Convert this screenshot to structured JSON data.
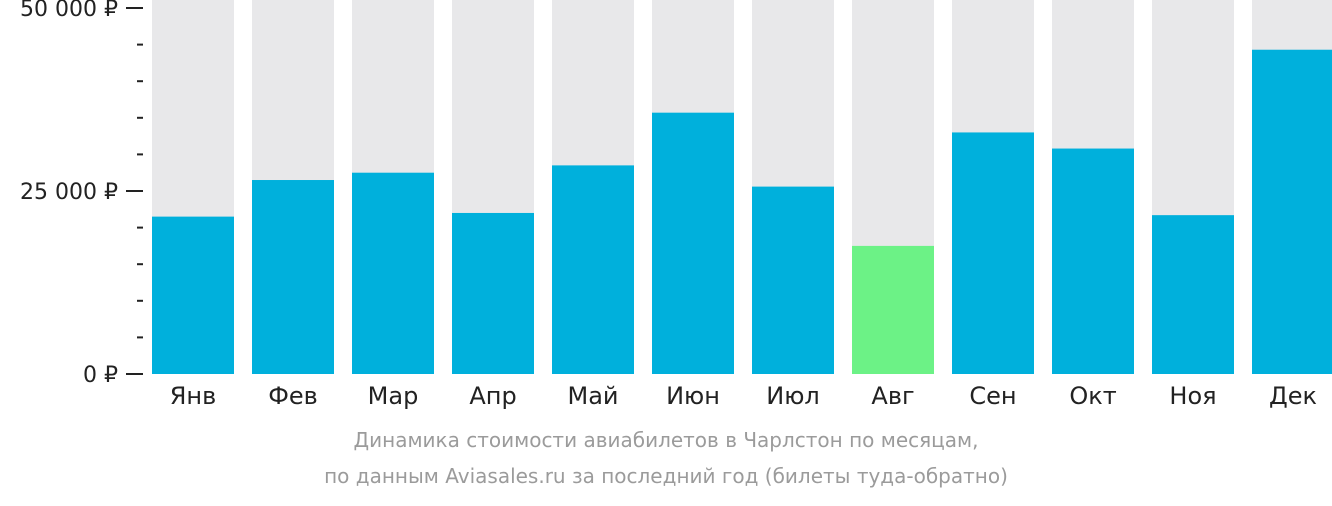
{
  "chart_data": {
    "type": "bar",
    "categories": [
      "Янв",
      "Фев",
      "Мар",
      "Апр",
      "Май",
      "Июн",
      "Июл",
      "Авг",
      "Сен",
      "Окт",
      "Ноя",
      "Дек"
    ],
    "values": [
      21500,
      26500,
      27500,
      22000,
      28500,
      35700,
      25600,
      17500,
      33000,
      30800,
      21700,
      44300
    ],
    "ylim": [
      0,
      50000
    ],
    "y_ticks": [
      {
        "value": 0,
        "label": "0 ₽"
      },
      {
        "value": 25000,
        "label": "25 000 ₽"
      },
      {
        "value": 50000,
        "label": "50 000 ₽"
      }
    ],
    "minor_tick_step": 5000,
    "title": "",
    "xlabel": "",
    "ylabel": "",
    "grid": false,
    "legend": "none",
    "highlight_index": 7,
    "colors": {
      "bar": "#00b0dc",
      "bar_highlight": "#6cf286",
      "background_column": "#e8e8ea",
      "axis_text": "#222222",
      "axis_line": "#222222"
    }
  },
  "caption": {
    "line1": "Динамика стоимости авиабилетов в Чарлстон по месяцам,",
    "line2": "по данным Aviasales.ru за последний год (билеты туда-обратно)"
  }
}
